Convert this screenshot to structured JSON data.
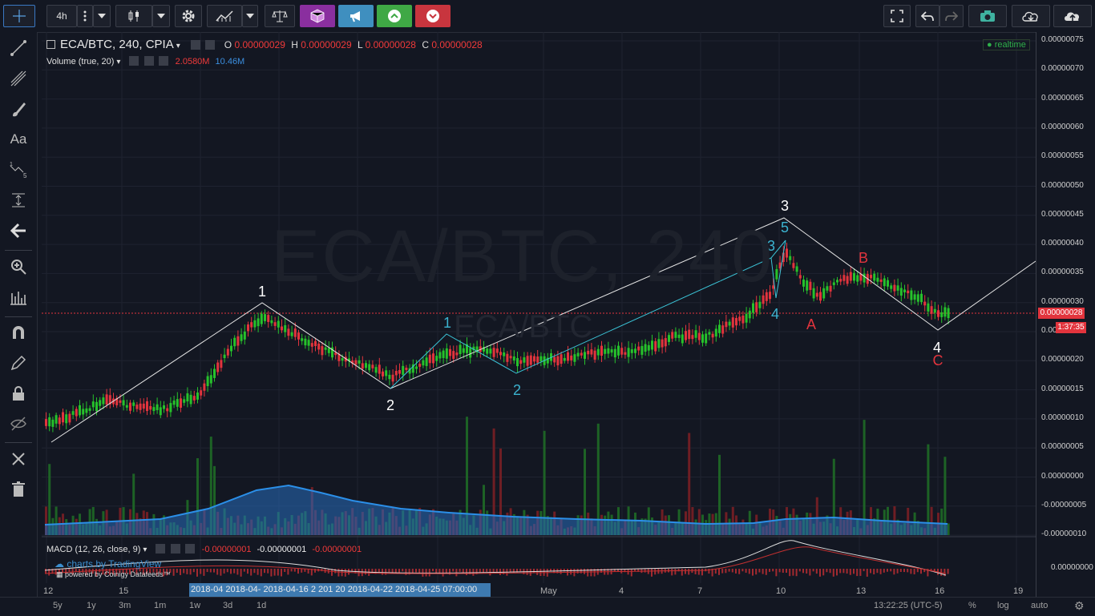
{
  "toolbar": {
    "interval": "4h"
  },
  "chart": {
    "symbol_line": "ECA/BTC, 240, CPIA",
    "watermark_big": "ECA/BTC, 240",
    "watermark_small": "ECA/BTC",
    "ohlc": {
      "o_label": "O",
      "o": "0.00000029",
      "h_label": "H",
      "h": "0.00000029",
      "l_label": "L",
      "l": "0.00000028",
      "c_label": "C",
      "c": "0.00000028"
    },
    "volume_label": "Volume (true, 20)",
    "volume_v1": "2.0580M",
    "volume_v2": "10.46M",
    "realtime": "realtime",
    "price_tag": "0.00000028",
    "countdown": "1:37:35",
    "macd_label": "MACD (12, 26, close, 9)",
    "macd_v1": "-0.00000001",
    "macd_v2": "-0.00000001",
    "macd_v3": "-0.00000001",
    "credit1": "charts by TradingView",
    "credit2": "powered by Coinigy Datafeeds™",
    "y_ticks": [
      "0.00000075",
      "0.00000070",
      "0.00000065",
      "0.00000060",
      "0.00000055",
      "0.00000050",
      "0.00000045",
      "0.00000040",
      "0.00000035",
      "0.00000030",
      "0.00000025",
      "0.00000020",
      "0.00000015",
      "0.00000010",
      "0.00000005",
      "0.00000000",
      "-0.00000005",
      "-0.00000010"
    ],
    "macd_tick": "0.00000000",
    "x_ticks": [
      "12",
      "15",
      "May",
      "4",
      "7",
      "10",
      "13",
      "16",
      "19"
    ],
    "x_highlight": "2018-04  2018-04-  2018-04-16 2  201  20  2018-04-22  2018-04-25 07:00:00",
    "wave_labels": {
      "w1": "1",
      "w2": "2",
      "w3": "3",
      "w4": "4",
      "s1": "1",
      "s2": "2",
      "s3": "3",
      "s4": "4",
      "s5": "5",
      "a": "A",
      "b": "B",
      "c": "C"
    }
  },
  "bottom": {
    "ranges": [
      "5y",
      "1y",
      "3m",
      "1m",
      "1w",
      "3d",
      "1d"
    ],
    "time": "13:22:25 (UTC-5)",
    "pct": "%",
    "log": "log",
    "auto": "auto"
  },
  "colors": {
    "up": "#26c22b",
    "down": "#e2343d",
    "accent": "#3bb3d0"
  }
}
